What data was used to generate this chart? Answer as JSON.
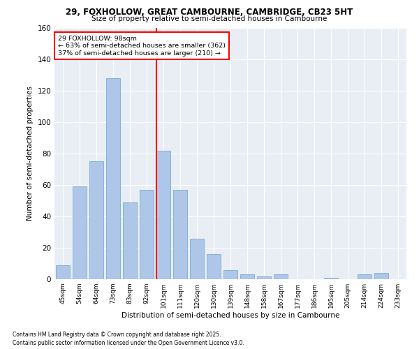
{
  "title1": "29, FOXHOLLOW, GREAT CAMBOURNE, CAMBRIDGE, CB23 5HT",
  "title2": "Size of property relative to semi-detached houses in Cambourne",
  "xlabel": "Distribution of semi-detached houses by size in Cambourne",
  "ylabel": "Number of semi-detached properties",
  "categories": [
    "45sqm",
    "54sqm",
    "64sqm",
    "73sqm",
    "83sqm",
    "92sqm",
    "101sqm",
    "111sqm",
    "120sqm",
    "130sqm",
    "139sqm",
    "148sqm",
    "158sqm",
    "167sqm",
    "177sqm",
    "186sqm",
    "195sqm",
    "205sqm",
    "214sqm",
    "224sqm",
    "233sqm"
  ],
  "values": [
    9,
    59,
    75,
    128,
    49,
    57,
    82,
    57,
    26,
    16,
    6,
    3,
    2,
    3,
    0,
    0,
    1,
    0,
    3,
    4,
    0
  ],
  "bar_color": "#aec6e8",
  "bar_edge_color": "#7aadd4",
  "vline_index": 6,
  "vline_color": "red",
  "annotation_text": "29 FOXHOLLOW: 98sqm\n← 63% of semi-detached houses are smaller (362)\n37% of semi-detached houses are larger (210) →",
  "annotation_box_color": "white",
  "annotation_box_edge_color": "red",
  "ylim": [
    0,
    160
  ],
  "yticks": [
    0,
    20,
    40,
    60,
    80,
    100,
    120,
    140,
    160
  ],
  "background_color": "#e8eef4",
  "footer_line1": "Contains HM Land Registry data © Crown copyright and database right 2025.",
  "footer_line2": "Contains public sector information licensed under the Open Government Licence v3.0."
}
